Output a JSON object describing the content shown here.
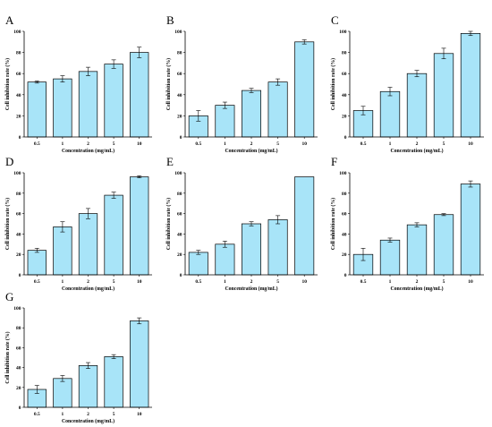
{
  "style": {
    "bar_fill": "#a8e4f8",
    "bar_stroke": "#000000",
    "axis_color": "#000000"
  },
  "chart_data": [
    {
      "panel": "A",
      "type": "bar",
      "categories": [
        "0.5",
        "1",
        "2",
        "5",
        "10"
      ],
      "values": [
        52,
        55,
        62,
        69,
        80
      ],
      "errors": [
        1,
        3,
        4,
        4,
        5
      ],
      "xlabel": "Concentration (mg/mL)",
      "ylabel": "Cell inhibition rate (%)",
      "ylim": [
        0,
        100
      ],
      "yticks": [
        0,
        20,
        40,
        60,
        80,
        100
      ]
    },
    {
      "panel": "B",
      "type": "bar",
      "categories": [
        "0.5",
        "1",
        "2",
        "5",
        "10"
      ],
      "values": [
        20,
        30,
        44,
        52,
        90
      ],
      "errors": [
        5,
        3,
        2,
        3,
        2
      ],
      "xlabel": "Concentration (mg/mL)",
      "ylabel": "Cell inhibition rate (%)",
      "ylim": [
        0,
        100
      ],
      "yticks": [
        0,
        20,
        40,
        60,
        80,
        100
      ]
    },
    {
      "panel": "C",
      "type": "bar",
      "categories": [
        "0.5",
        "1",
        "2",
        "5",
        "10"
      ],
      "values": [
        25,
        43,
        60,
        79,
        98
      ],
      "errors": [
        4,
        4,
        3,
        5,
        2
      ],
      "xlabel": "Concentration (mg/mL)",
      "ylabel": "Cell inhibition rate (%)",
      "ylim": [
        0,
        100
      ],
      "yticks": [
        0,
        20,
        40,
        60,
        80,
        100
      ]
    },
    {
      "panel": "D",
      "type": "bar",
      "categories": [
        "0.5",
        "1",
        "2",
        "5",
        "10"
      ],
      "values": [
        24,
        47,
        60,
        78,
        96
      ],
      "errors": [
        2,
        5,
        5,
        3,
        1
      ],
      "xlabel": "Concentration (mg/mL)",
      "ylabel": "Cell inhibition rate (%)",
      "ylim": [
        0,
        100
      ],
      "yticks": [
        0,
        20,
        40,
        60,
        80,
        100
      ]
    },
    {
      "panel": "E",
      "type": "bar",
      "categories": [
        "0.5",
        "1",
        "2",
        "5",
        "10"
      ],
      "values": [
        22,
        30,
        50,
        54,
        96
      ],
      "errors": [
        2,
        3,
        2,
        4,
        0
      ],
      "xlabel": "Concentration (mg/mL)",
      "ylabel": "Cell inhibition rate (%)",
      "ylim": [
        0,
        100
      ],
      "yticks": [
        0,
        20,
        40,
        60,
        80,
        100
      ]
    },
    {
      "panel": "F",
      "type": "bar",
      "categories": [
        "0.5",
        "1",
        "2",
        "5",
        "10"
      ],
      "values": [
        20,
        34,
        49,
        59,
        89
      ],
      "errors": [
        6,
        2,
        2,
        1,
        3
      ],
      "xlabel": "Concentration (mg/mL)",
      "ylabel": "Cell inhibition rate (%)",
      "ylim": [
        0,
        100
      ],
      "yticks": [
        0,
        20,
        40,
        60,
        80,
        100
      ]
    },
    {
      "panel": "G",
      "type": "bar",
      "categories": [
        "0.5",
        "1",
        "2",
        "5",
        "10"
      ],
      "values": [
        18,
        29,
        42,
        51,
        87
      ],
      "errors": [
        4,
        3,
        3,
        2,
        3
      ],
      "xlabel": "Concentration (mg/mL)",
      "ylabel": "Cell inhibition rate (%)",
      "ylim": [
        0,
        100
      ],
      "yticks": [
        0,
        20,
        40,
        60,
        80,
        100
      ]
    }
  ]
}
